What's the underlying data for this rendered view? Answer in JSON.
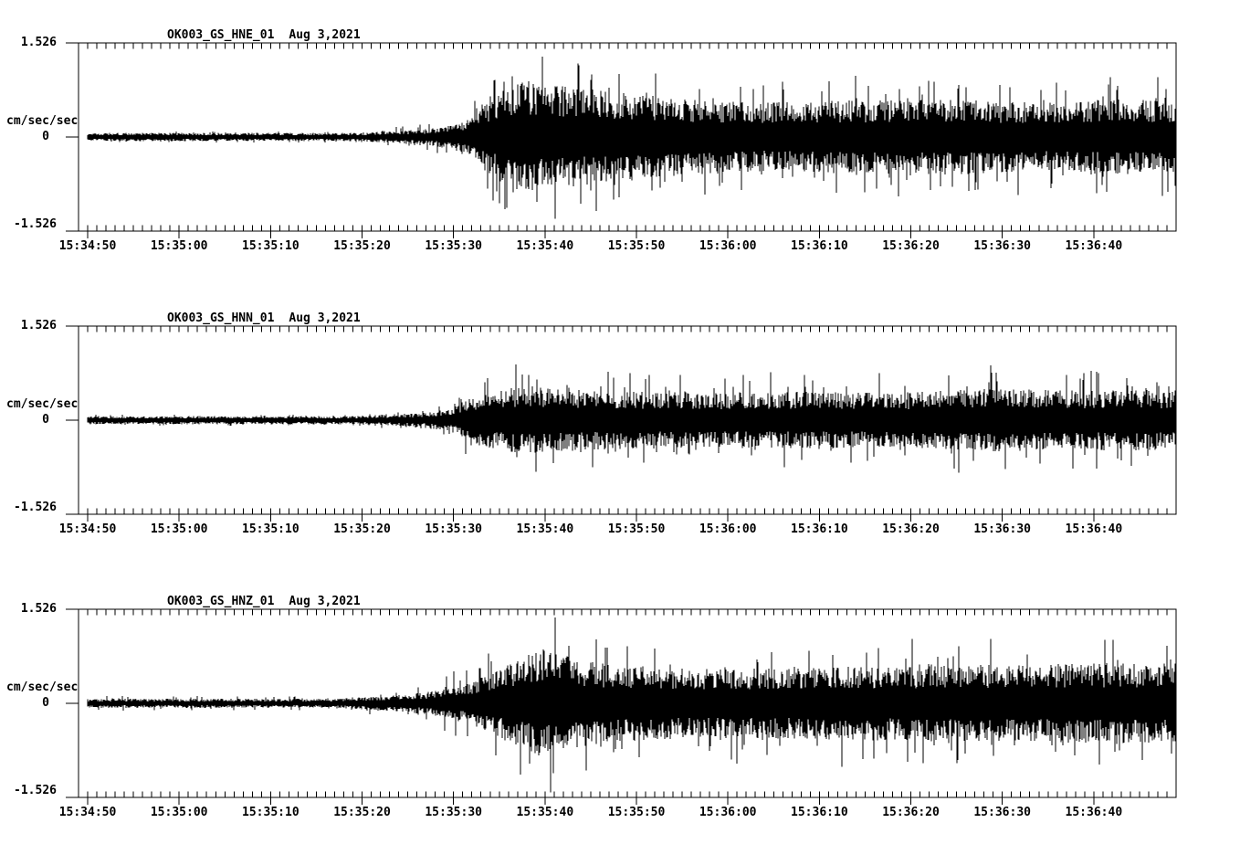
{
  "page": {
    "background": "#ffffff",
    "trace_color": "#000000"
  },
  "chart_data": [
    {
      "type": "line",
      "subtype": "seismogram",
      "station_channel": "OK003_GS_HNE_01",
      "date": "Aug 3,2021",
      "ylabel": "cm/sec/sec",
      "y_full_scale": 1.526,
      "y_tick_labels": [
        "1.526",
        "0",
        "-1.526"
      ],
      "ylim": [
        -1.526,
        1.526
      ],
      "x_major_tick_labels": [
        "15:34:50",
        "15:35:00",
        "15:35:10",
        "15:35:20",
        "15:35:30",
        "15:35:40",
        "15:35:50",
        "15:36:00",
        "15:36:10",
        "15:36:20",
        "15:36:30",
        "15:36:40"
      ],
      "x_major_interval_sec": 10,
      "x_minor_interval_sec": 1,
      "x_span_sec": 120,
      "trace_start_offset_sec": 1,
      "grid": false,
      "legend": "none",
      "seed": 1337,
      "envelope_cm_s2": [
        {
          "t": 1,
          "band": 0.052,
          "peak": 0.089
        },
        {
          "t": 30,
          "band": 0.052,
          "peak": 0.089
        },
        {
          "t": 34,
          "band": 0.074,
          "peak": 0.148
        },
        {
          "t": 38,
          "band": 0.104,
          "peak": 0.237
        },
        {
          "t": 41,
          "band": 0.163,
          "peak": 0.385
        },
        {
          "t": 43,
          "band": 0.267,
          "peak": 0.667
        },
        {
          "t": 45,
          "band": 0.519,
          "peak": 1.111
        },
        {
          "t": 48,
          "band": 0.711,
          "peak": 1.408
        },
        {
          "t": 53,
          "band": 0.667,
          "peak": 1.482
        },
        {
          "t": 58,
          "band": 0.593,
          "peak": 1.185
        },
        {
          "t": 65,
          "band": 0.504,
          "peak": 1.037
        },
        {
          "t": 75,
          "band": 0.445,
          "peak": 0.919
        },
        {
          "t": 85,
          "band": 0.474,
          "peak": 1.008
        },
        {
          "t": 95,
          "band": 0.489,
          "peak": 1.037
        },
        {
          "t": 105,
          "band": 0.445,
          "peak": 0.963
        },
        {
          "t": 113,
          "band": 0.489,
          "peak": 1.067
        },
        {
          "t": 120,
          "band": 0.474,
          "peak": 0.963
        }
      ]
    },
    {
      "type": "line",
      "subtype": "seismogram",
      "station_channel": "OK003_GS_HNN_01",
      "date": "Aug 3,2021",
      "ylabel": "cm/sec/sec",
      "y_full_scale": 1.526,
      "y_tick_labels": [
        "1.526",
        "0",
        "-1.526"
      ],
      "ylim": [
        -1.526,
        1.526
      ],
      "x_major_tick_labels": [
        "15:34:50",
        "15:35:00",
        "15:35:10",
        "15:35:20",
        "15:35:30",
        "15:35:40",
        "15:35:50",
        "15:36:00",
        "15:36:10",
        "15:36:20",
        "15:36:30",
        "15:36:40"
      ],
      "x_major_interval_sec": 10,
      "x_minor_interval_sec": 1,
      "x_span_sec": 120,
      "trace_start_offset_sec": 1,
      "grid": false,
      "legend": "none",
      "seed": 4242,
      "envelope_cm_s2": [
        {
          "t": 1,
          "band": 0.052,
          "peak": 0.089
        },
        {
          "t": 30,
          "band": 0.052,
          "peak": 0.089
        },
        {
          "t": 34,
          "band": 0.074,
          "peak": 0.148
        },
        {
          "t": 38,
          "band": 0.104,
          "peak": 0.222
        },
        {
          "t": 41,
          "band": 0.163,
          "peak": 0.355
        },
        {
          "t": 43,
          "band": 0.296,
          "peak": 0.667
        },
        {
          "t": 46,
          "band": 0.4,
          "peak": 0.889
        },
        {
          "t": 49,
          "band": 0.445,
          "peak": 1.008
        },
        {
          "t": 53,
          "band": 0.4,
          "peak": 0.859
        },
        {
          "t": 60,
          "band": 0.37,
          "peak": 0.77
        },
        {
          "t": 70,
          "band": 0.356,
          "peak": 0.741
        },
        {
          "t": 80,
          "band": 0.37,
          "peak": 0.815
        },
        {
          "t": 90,
          "band": 0.356,
          "peak": 0.77
        },
        {
          "t": 100,
          "band": 0.415,
          "peak": 0.919
        },
        {
          "t": 108,
          "band": 0.385,
          "peak": 0.815
        },
        {
          "t": 115,
          "band": 0.4,
          "peak": 0.815
        },
        {
          "t": 120,
          "band": 0.385,
          "peak": 0.741
        }
      ]
    },
    {
      "type": "line",
      "subtype": "seismogram",
      "station_channel": "OK003_GS_HNZ_01",
      "date": "Aug 3,2021",
      "ylabel": "cm/sec/sec",
      "y_full_scale": 1.526,
      "y_tick_labels": [
        "1.526",
        "0",
        "-1.526"
      ],
      "ylim": [
        -1.526,
        1.526
      ],
      "x_major_tick_labels": [
        "15:34:50",
        "15:35:00",
        "15:35:10",
        "15:35:20",
        "15:35:30",
        "15:35:40",
        "15:35:50",
        "15:36:00",
        "15:36:10",
        "15:36:20",
        "15:36:30",
        "15:36:40"
      ],
      "x_major_interval_sec": 10,
      "x_minor_interval_sec": 1,
      "x_span_sec": 120,
      "trace_start_offset_sec": 1,
      "grid": false,
      "legend": "none",
      "seed": 9001,
      "envelope_cm_s2": [
        {
          "t": 1,
          "band": 0.059,
          "peak": 0.119
        },
        {
          "t": 28,
          "band": 0.059,
          "peak": 0.119
        },
        {
          "t": 32,
          "band": 0.089,
          "peak": 0.178
        },
        {
          "t": 36,
          "band": 0.119,
          "peak": 0.267
        },
        {
          "t": 40,
          "band": 0.178,
          "peak": 0.445
        },
        {
          "t": 44,
          "band": 0.326,
          "peak": 0.815
        },
        {
          "t": 48,
          "band": 0.563,
          "peak": 1.26
        },
        {
          "t": 51,
          "band": 0.711,
          "peak": 1.526
        },
        {
          "t": 53,
          "band": 0.622,
          "peak": 1.482
        },
        {
          "t": 57,
          "band": 0.519,
          "peak": 1.185
        },
        {
          "t": 63,
          "band": 0.474,
          "peak": 1.037
        },
        {
          "t": 72,
          "band": 0.445,
          "peak": 1.008
        },
        {
          "t": 82,
          "band": 0.474,
          "peak": 1.037
        },
        {
          "t": 92,
          "band": 0.489,
          "peak": 1.067
        },
        {
          "t": 102,
          "band": 0.504,
          "peak": 1.067
        },
        {
          "t": 112,
          "band": 0.519,
          "peak": 1.111
        },
        {
          "t": 120,
          "band": 0.519,
          "peak": 1.037
        }
      ]
    }
  ]
}
